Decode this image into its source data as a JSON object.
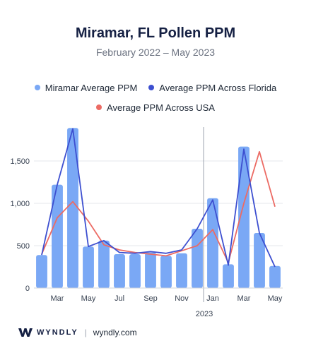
{
  "colors": {
    "bar": "#7aa8f5",
    "florida": "#3d4fd0",
    "usa": "#ec6b64",
    "grid": "#e5e7eb",
    "axis_text": "#374151",
    "divider": "#9ca3af"
  },
  "footer": {
    "brand": "WYNDLY",
    "separator": "|",
    "url": "wyndly.com"
  },
  "chart_data": {
    "type": "bar",
    "title": "Miramar, FL Pollen PPM",
    "subtitle": "February 2022 – May 2023",
    "x": [
      "2022-02",
      "2022-03",
      "2022-04",
      "2022-05",
      "2022-06",
      "2022-07",
      "2022-08",
      "2022-09",
      "2022-10",
      "2022-11",
      "2022-12",
      "2023-01",
      "2023-02",
      "2023-03",
      "2023-04",
      "2023-05"
    ],
    "tick_labels": [
      "Mar",
      "May",
      "Jul",
      "Sep",
      "Nov",
      "Jan",
      "Mar",
      "May"
    ],
    "tick_index": [
      1,
      3,
      5,
      7,
      9,
      11,
      13,
      15
    ],
    "year_label": "2023",
    "year_start_index": 11,
    "ylim": [
      0,
      1900
    ],
    "yticks": [
      0,
      500,
      1000,
      1500
    ],
    "ytick_labels": [
      "0",
      "500",
      "1,000",
      "1,500"
    ],
    "grid": true,
    "legend_position": "top",
    "series": [
      {
        "name": "Miramar Average PPM",
        "kind": "bar",
        "values": [
          390,
          1220,
          1890,
          490,
          560,
          400,
          400,
          420,
          380,
          410,
          700,
          1060,
          280,
          1670,
          650,
          260
        ]
      },
      {
        "name": "Average PPM Across Florida",
        "kind": "line",
        "values": [
          390,
          1220,
          1880,
          490,
          560,
          420,
          410,
          430,
          410,
          450,
          700,
          1040,
          270,
          1640,
          650,
          250
        ]
      },
      {
        "name": "Average PPM Across USA",
        "kind": "line",
        "values": [
          400,
          830,
          1020,
          790,
          510,
          450,
          420,
          400,
          380,
          440,
          500,
          690,
          300,
          1000,
          1610,
          960
        ]
      }
    ]
  }
}
